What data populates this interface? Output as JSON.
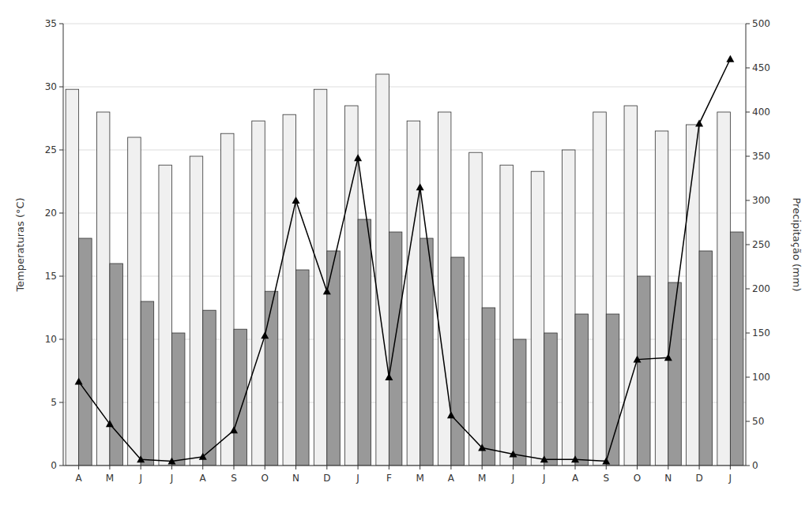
{
  "chart_data": {
    "type": "bar",
    "categories": [
      "A",
      "M",
      "J",
      "J",
      "A",
      "S",
      "O",
      "N",
      "D",
      "J",
      "F",
      "M",
      "A",
      "M",
      "J",
      "J",
      "A",
      "S",
      "O",
      "N",
      "D",
      "J"
    ],
    "series": [
      {
        "type": "bar",
        "color": "#f0f0f0",
        "values": [
          29.8,
          28.0,
          26.0,
          23.8,
          24.5,
          26.3,
          27.3,
          27.8,
          29.8,
          28.5,
          31.0,
          27.3,
          28.0,
          24.8,
          23.8,
          23.3,
          25.0,
          28.0,
          28.5,
          26.5,
          27.0,
          28.0
        ]
      },
      {
        "type": "bar",
        "color": "#999999",
        "values": [
          18.0,
          16.0,
          13.0,
          10.5,
          12.3,
          10.8,
          13.8,
          15.5,
          17.0,
          19.5,
          18.5,
          18.0,
          16.5,
          12.5,
          10.0,
          10.5,
          12.0,
          12.0,
          15.0,
          14.5,
          17.0,
          18.5
        ]
      },
      {
        "type": "line",
        "axis": "y2",
        "color": "#000000",
        "marker": "triangle",
        "values": [
          95,
          47,
          7,
          5,
          10,
          40,
          147,
          300,
          197,
          348,
          100,
          315,
          57,
          20,
          13,
          7,
          7,
          5,
          120,
          122,
          387,
          460
        ]
      }
    ],
    "ylabel": "Temperaturas (°C)",
    "y2label": "Precipitação (mm)",
    "ylim": [
      0,
      35
    ],
    "yticks": [
      0,
      5,
      10,
      15,
      20,
      25,
      30,
      35
    ],
    "y2lim": [
      0,
      500
    ],
    "y2ticks": [
      0,
      50,
      100,
      150,
      200,
      250,
      300,
      350,
      400,
      450,
      500
    ],
    "grid": true
  }
}
